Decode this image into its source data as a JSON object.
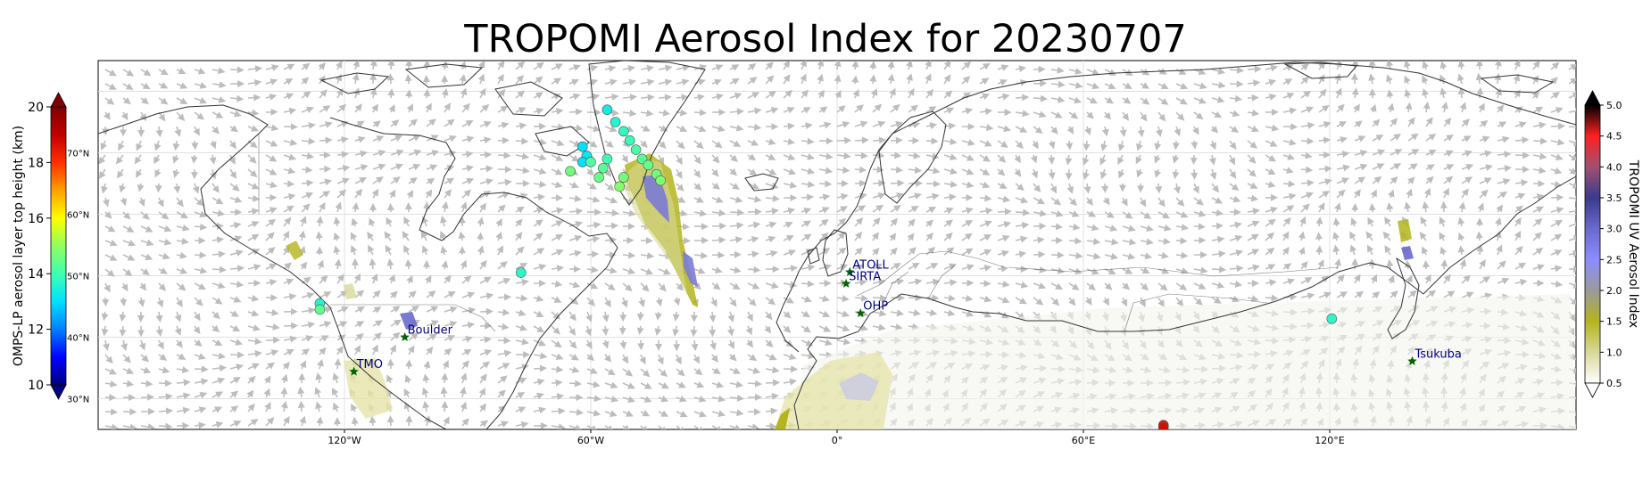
{
  "title": "TROPOMI Aerosol Index for 20230707",
  "map": {
    "projection": "plate-carree",
    "lon_range": [
      -180,
      180
    ],
    "lat_range": [
      25,
      85
    ],
    "lon_ticks": [
      {
        "lon": -120,
        "label": "120°W"
      },
      {
        "lon": -60,
        "label": "60°W"
      },
      {
        "lon": 0,
        "label": "0°"
      },
      {
        "lon": 60,
        "label": "60°E"
      },
      {
        "lon": 120,
        "label": "120°E"
      }
    ],
    "lat_ticks": [
      {
        "lat": 70,
        "label": "70°N"
      },
      {
        "lat": 60,
        "label": "60°N"
      },
      {
        "lat": 50,
        "label": "50°N"
      },
      {
        "lat": 40,
        "label": "40°N"
      },
      {
        "lat": 30,
        "label": "30°N"
      }
    ],
    "wind_vectors_color": "#bdbdbd",
    "coastline_color": "#333333",
    "gridlines": true
  },
  "sites": [
    {
      "name": "TMO",
      "lon": -117.7,
      "lat": 34.4
    },
    {
      "name": "Boulder",
      "lon": -105.3,
      "lat": 40.0
    },
    {
      "name": "ATOLL",
      "lon": 3.1,
      "lat": 50.6
    },
    {
      "name": "SIRTA",
      "lon": 2.2,
      "lat": 48.7
    },
    {
      "name": "OHP",
      "lon": 5.7,
      "lat": 43.9
    },
    {
      "name": "Tsukuba",
      "lon": 140.1,
      "lat": 36.1
    }
  ],
  "site_marker_color": "#006400",
  "site_label_color": "#000080",
  "omps_points": [
    {
      "lon": -56,
      "lat": 77,
      "height": 13.3
    },
    {
      "lon": -54,
      "lat": 75,
      "height": 13.6
    },
    {
      "lon": -52,
      "lat": 73.5,
      "height": 13.8
    },
    {
      "lon": -50.5,
      "lat": 72,
      "height": 13.9
    },
    {
      "lon": -49,
      "lat": 70.5,
      "height": 14.1
    },
    {
      "lon": -47.5,
      "lat": 69,
      "height": 14.3
    },
    {
      "lon": -46,
      "lat": 68,
      "height": 14.5
    },
    {
      "lon": -44,
      "lat": 66.5,
      "height": 14.6
    },
    {
      "lon": -43,
      "lat": 65.5,
      "height": 14.8
    },
    {
      "lon": -62,
      "lat": 71,
      "height": 13.0
    },
    {
      "lon": -61,
      "lat": 69.5,
      "height": 13.2
    },
    {
      "lon": -62,
      "lat": 68.5,
      "height": 13.0
    },
    {
      "lon": -60,
      "lat": 68.5,
      "height": 14.2
    },
    {
      "lon": -56,
      "lat": 69,
      "height": 14.0
    },
    {
      "lon": -57,
      "lat": 67.5,
      "height": 14.3
    },
    {
      "lon": -65,
      "lat": 67,
      "height": 14.6
    },
    {
      "lon": -58,
      "lat": 66,
      "height": 14.5
    },
    {
      "lon": -52,
      "lat": 66,
      "height": 14.7
    },
    {
      "lon": -53,
      "lat": 64.5,
      "height": 14.9
    },
    {
      "lon": -77,
      "lat": 50.5,
      "height": 13.7
    },
    {
      "lon": -126,
      "lat": 45.5,
      "height": 13.6
    },
    {
      "lon": -126,
      "lat": 44.5,
      "height": 14.4
    },
    {
      "lon": 120.5,
      "lat": 43,
      "height": 13.7
    },
    {
      "lon": 79.5,
      "lat": 25.7,
      "height": 18.5
    },
    {
      "lon": 79.5,
      "lat": 25.3,
      "height": 18.7
    }
  ],
  "aerosol_plumes": [
    {
      "region": "Canada-Greenland plume",
      "max_ai": 3.0
    },
    {
      "region": "Western US",
      "max_ai": 2.0
    },
    {
      "region": "Colorado",
      "max_ai": 3.0
    },
    {
      "region": "Japan",
      "max_ai": 3.2
    },
    {
      "region": "Saharan dust",
      "max_ai": 2.0
    }
  ],
  "colorbar_left": {
    "label": "OMPS-LP aerosol layer top height (km)",
    "min": 10,
    "max": 20,
    "ticks": [
      "10",
      "12",
      "14",
      "16",
      "18",
      "20"
    ],
    "colormap": "jet",
    "colors": [
      "#000080",
      "#0000ff",
      "#0080ff",
      "#00e0ff",
      "#40ffb0",
      "#90ff60",
      "#ffff00",
      "#ffa000",
      "#ff3000",
      "#c00000",
      "#800000"
    ]
  },
  "colorbar_right": {
    "label": "TROPOMI UV Aerosol Index",
    "min": 0.5,
    "max": 5.0,
    "ticks": [
      "0.5",
      "1.0",
      "1.5",
      "2.0",
      "2.5",
      "3.0",
      "3.5",
      "4.0",
      "4.5",
      "5.0"
    ],
    "colors": [
      "#ffffff",
      "#d8d89a",
      "#b4b41e",
      "#9a9a9a",
      "#8c8cff",
      "#6a6acc",
      "#3a3a8c",
      "#a05070",
      "#ff2020",
      "#000000"
    ]
  }
}
